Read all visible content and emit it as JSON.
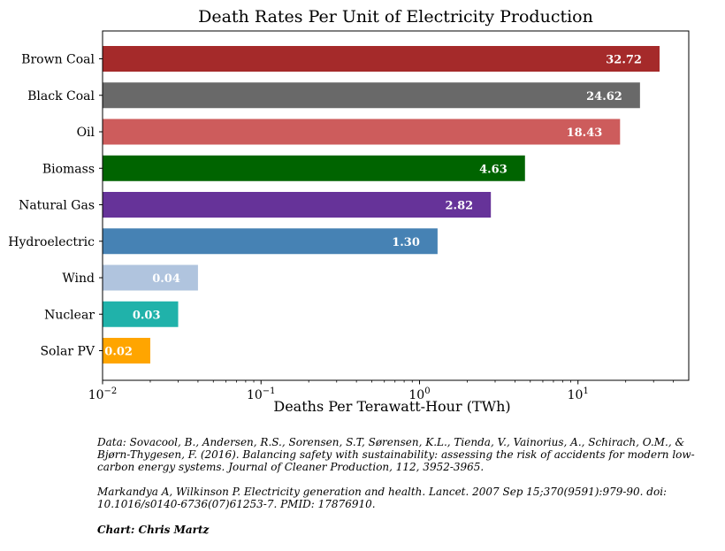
{
  "chart_data": {
    "type": "bar",
    "orientation": "horizontal",
    "title": "Death Rates Per Unit of Electricity Production",
    "xlabel": "Deaths Per Terawatt-Hour (TWh)",
    "ylabel": "",
    "xscale": "log",
    "xlim": [
      0.01,
      50
    ],
    "grid": false,
    "categories": [
      "Brown Coal",
      "Black Coal",
      "Oil",
      "Biomass",
      "Natural Gas",
      "Hydroelectric",
      "Wind",
      "Nuclear",
      "Solar PV"
    ],
    "values": [
      32.72,
      24.62,
      18.43,
      4.63,
      2.82,
      1.3,
      0.04,
      0.03,
      0.02
    ],
    "value_labels": [
      "32.72",
      "24.62",
      "18.43",
      "4.63",
      "2.82",
      "1.30",
      "0.04",
      "0.03",
      "0.02"
    ],
    "colors": [
      "#a52a2a",
      "#696969",
      "#cd5c5c",
      "#006400",
      "#663399",
      "#4682b4",
      "#b0c4de",
      "#20b2aa",
      "#ffa500"
    ],
    "major_ticks": [
      {
        "value": 0.01,
        "base": "10",
        "exp": "−2"
      },
      {
        "value": 0.1,
        "base": "10",
        "exp": "−1"
      },
      {
        "value": 1,
        "base": "10",
        "exp": "0"
      },
      {
        "value": 10,
        "base": "10",
        "exp": "1"
      }
    ]
  },
  "captions": {
    "data_source": "Data: Sovacool, B., Andersen, R.S., Sorensen, S.T, Sørensen, K.L., Tienda, V., Vainorius, A., Schirach, O.M., & Bjørn-Thygesen, F. (2016). Balancing safety with sustainability: assessing the risk of accidents for modern low-carbon energy systems. Journal of Cleaner Production, 112, 3952-3965.",
    "reference": "Markandya A, Wilkinson P. Electricity generation and health. Lancet. 2007 Sep 15;370(9591):979-90. doi: 10.1016/s0140-6736(07)61253-7. PMID: 17876910.",
    "credit": "Chart: Chris Martz"
  }
}
